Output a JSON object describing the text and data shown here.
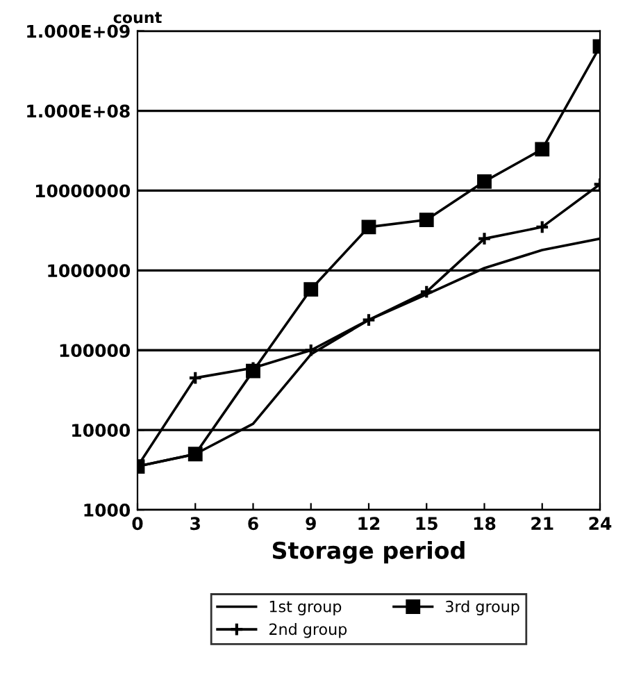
{
  "chart_data": {
    "type": "line",
    "xlabel": "Storage period",
    "ylabel": "count",
    "x": [
      0,
      3,
      6,
      9,
      12,
      15,
      18,
      21,
      24
    ],
    "series": [
      {
        "name": "1st group",
        "color": "#000000",
        "marker": "none",
        "values": [
          3500,
          5000,
          12000,
          89000,
          240000,
          500000,
          1070000,
          1800000,
          2500000
        ]
      },
      {
        "name": "2nd group",
        "color": "#000000",
        "marker": "cross",
        "values": [
          3500,
          45000,
          60000,
          100000,
          240000,
          540000,
          2500000,
          3500000,
          12000000
        ]
      },
      {
        "name": "3rd group",
        "color": "#000000",
        "marker": "square",
        "values": [
          3500,
          5000,
          55000,
          580000,
          3500000,
          4300000,
          13000000,
          33000000,
          640000000
        ]
      }
    ],
    "log": "y",
    "xlim": [
      0,
      24
    ],
    "xticks": [
      0,
      3,
      6,
      9,
      12,
      15,
      18,
      21,
      24
    ],
    "ylim": [
      1000,
      1000000000
    ],
    "yticks": [
      1000,
      10000,
      100000,
      1000000,
      10000000,
      {
        "value": 100000000,
        "label": "1.000E+08"
      },
      {
        "value": 1000000000,
        "label": "1.000E+09"
      }
    ],
    "grid": "y",
    "legend": "bottom",
    "line_style": "solid"
  }
}
